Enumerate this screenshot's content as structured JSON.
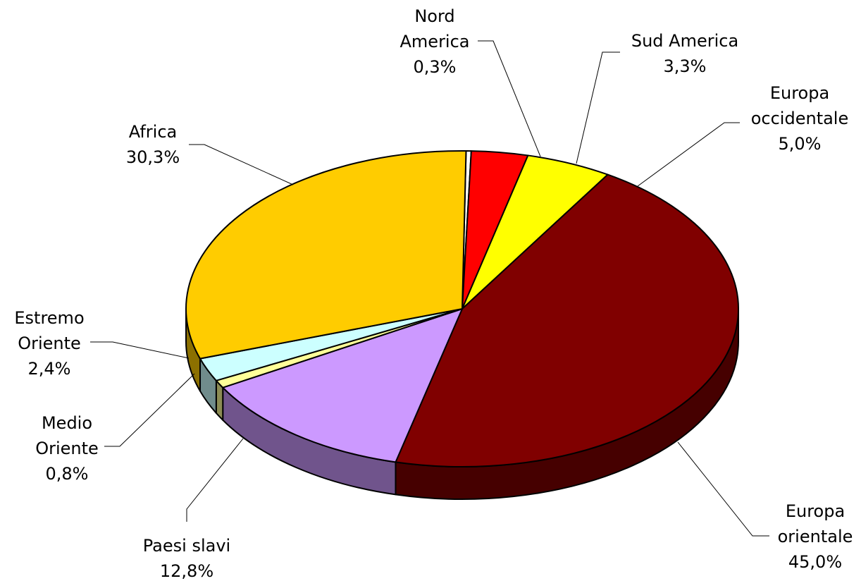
{
  "chart_data": {
    "type": "pie",
    "style": "3d",
    "legend": "none",
    "slices": [
      {
        "label_lines": [
          "Nord",
          "America"
        ],
        "value": 0.3,
        "value_text": "0,3%",
        "color": "#ffffff"
      },
      {
        "label_lines": [
          "Sud America"
        ],
        "value": 3.3,
        "value_text": "3,3%",
        "color": "#ff0000"
      },
      {
        "label_lines": [
          "Europa",
          "occidentale"
        ],
        "value": 5.0,
        "value_text": "5,0%",
        "color": "#ffff00"
      },
      {
        "label_lines": [
          "Europa",
          "orientale"
        ],
        "value": 45.0,
        "value_text": "45,0%",
        "color": "#800000"
      },
      {
        "label_lines": [
          "Paesi slavi"
        ],
        "value": 12.8,
        "value_text": "12,8%",
        "color": "#cc99ff"
      },
      {
        "label_lines": [
          "Medio",
          "Oriente"
        ],
        "value": 0.8,
        "value_text": "0,8%",
        "color": "#ffff99"
      },
      {
        "label_lines": [
          "Estremo",
          "Oriente"
        ],
        "value": 2.4,
        "value_text": "2,4%",
        "color": "#ccffff"
      },
      {
        "label_lines": [
          "Africa"
        ],
        "value": 30.3,
        "value_text": "30,3%",
        "color": "#ffcc00"
      }
    ]
  }
}
